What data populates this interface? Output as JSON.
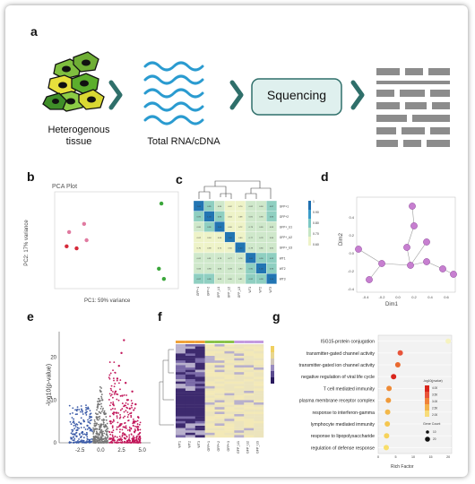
{
  "panels": {
    "a": "a",
    "b": "b",
    "c": "c",
    "d": "d",
    "e": "e",
    "f": "f",
    "g": "g"
  },
  "workflow": {
    "tissue_label_line1": "Heterogenous",
    "tissue_label_line2": "tissue",
    "rna_label": "Total RNA/cDNA",
    "sequencing_label": "Squencing",
    "accent_color": "#2f6f6a",
    "box_fill": "#dff0ee"
  },
  "pca": {
    "title": "PCA Plot",
    "xlabel": "PC1: 59% variance",
    "ylabel": "PC2: 17% variance",
    "points": [
      {
        "x": -0.9,
        "y": 0.3,
        "group": "pink"
      },
      {
        "x": -0.6,
        "y": 0.5,
        "group": "pink"
      },
      {
        "x": -0.55,
        "y": 0.1,
        "group": "pink"
      },
      {
        "x": -0.95,
        "y": -0.05,
        "group": "red"
      },
      {
        "x": -0.75,
        "y": -0.1,
        "group": "red"
      },
      {
        "x": 0.95,
        "y": 1.0,
        "group": "green"
      },
      {
        "x": 0.9,
        "y": -0.6,
        "group": "green"
      },
      {
        "x": 1.0,
        "y": -0.85,
        "group": "green"
      }
    ],
    "colors": {
      "pink": "#e07aa0",
      "red": "#d62a3a",
      "green": "#3aa63a"
    }
  },
  "heatmap_c": {
    "row_labels": [
      "GFP+1",
      "GFP+2",
      "GFP+_U1",
      "GFP+_U2",
      "GFP+_U3",
      "WT1",
      "WT2",
      "WT3"
    ],
    "col_labels": [
      "GFP+1",
      "GFP+2",
      "GFP_U1",
      "GFP_U2",
      "GFP_U3",
      "WT1",
      "WT2",
      "WT3"
    ],
    "legend_ticks": [
      "1",
      "0.90",
      "0.80",
      "0.70",
      "0.60"
    ],
    "cell_values": [
      [
        "1.00",
        "0.85",
        "0.80",
        "0.62",
        "0.70",
        "0.82",
        "0.84",
        "0.87"
      ],
      [
        "0.85",
        "1.00",
        "0.86",
        "0.64",
        "0.68",
        "0.81",
        "0.83",
        "0.85"
      ],
      [
        "0.80",
        "0.86",
        "1.00",
        "0.66",
        "0.72",
        "0.79",
        "0.80",
        "0.83"
      ],
      [
        "0.62",
        "0.64",
        "0.66",
        "1.00",
        "0.60",
        "0.77",
        "0.78",
        "0.80"
      ],
      [
        "0.70",
        "0.68",
        "0.72",
        "0.60",
        "1.00",
        "0.78",
        "0.80",
        "0.81"
      ],
      [
        "0.82",
        "0.81",
        "0.79",
        "0.77",
        "0.78",
        "1.00",
        "0.90",
        "0.92"
      ],
      [
        "0.84",
        "0.83",
        "0.80",
        "0.78",
        "0.80",
        "0.90",
        "1.00",
        "0.93"
      ],
      [
        "0.87",
        "0.85",
        "0.83",
        "0.80",
        "0.81",
        "0.92",
        "0.93",
        "1.00"
      ]
    ]
  },
  "network": {
    "xlabel": "Dim1",
    "ylabel": "Dim2",
    "xticks": [
      "-0.4",
      "-0.2",
      "0.0",
      "0.2",
      "0.4",
      "0.6"
    ],
    "yticks": [
      "0.4",
      "0.2",
      "0.0",
      "-0.2",
      "-0.4"
    ]
  },
  "chart_data": [
    {
      "type": "scatter",
      "title": "",
      "xlabel": "",
      "ylabel": "-log10(p-value)",
      "xticks": [
        "-2.5",
        "0.0",
        "2.5",
        "5.0"
      ],
      "yticks": [
        "0",
        "10",
        "20"
      ],
      "xlim": [
        -5,
        6
      ],
      "ylim": [
        0,
        26
      ],
      "series": [
        {
          "color": "#3b5ba8",
          "points": [
            [
              -3.2,
              2
            ],
            [
              -2.8,
              3
            ],
            [
              -2.4,
              4.5
            ],
            [
              -2,
              5
            ],
            [
              -1.8,
              7
            ],
            [
              -1.5,
              8
            ],
            [
              -1.2,
              6
            ],
            [
              -2.9,
              1.5
            ],
            [
              -3.5,
              1
            ],
            [
              -1.4,
              3.5
            ],
            [
              -2.2,
              2.5
            ],
            [
              -1.6,
              4
            ]
          ]
        },
        {
          "color": "#777777",
          "points": [
            [
              -0.8,
              3
            ],
            [
              -0.5,
              6
            ],
            [
              -0.3,
              9
            ],
            [
              0,
              12
            ],
            [
              0.2,
              10
            ],
            [
              0.4,
              7
            ],
            [
              0.6,
              4
            ],
            [
              -0.2,
              2
            ],
            [
              0.1,
              1
            ],
            [
              0.7,
              2
            ],
            [
              -0.6,
              1.5
            ]
          ]
        },
        {
          "color": "#c2185b",
          "points": [
            [
              1.2,
              5
            ],
            [
              1.5,
              9
            ],
            [
              1.8,
              12
            ],
            [
              2,
              15
            ],
            [
              2.2,
              18
            ],
            [
              2.5,
              21
            ],
            [
              2.8,
              24
            ],
            [
              3,
              14
            ],
            [
              3.2,
              10
            ],
            [
              3.5,
              8
            ],
            [
              4,
              5
            ],
            [
              4.5,
              3
            ],
            [
              2.6,
              11
            ],
            [
              1.9,
              7
            ],
            [
              3.8,
              12
            ],
            [
              2.3,
              4
            ],
            [
              4.2,
              9
            ]
          ]
        }
      ]
    },
    {
      "type": "bar",
      "title": "",
      "xlabel": "Rich Factor",
      "ylabel": "",
      "categories": [
        "ISG15-protein conjugation",
        "transmitter-gated channel activity",
        "transmitter-gated ion channel activity",
        "negative regulation of viral life cycle",
        "T cell mediated immunity",
        "plasma membrane receptor complex",
        "response to interferon-gamma",
        "lymphocyte mediated immunity",
        "response to lipopolysaccharide",
        "regulation of defense response"
      ],
      "values": [
        20.0,
        6.3,
        5.6,
        4.4,
        3.1,
        2.9,
        2.7,
        2.6,
        2.4,
        2.3
      ],
      "xticks": [
        "0",
        "5",
        "10",
        "15",
        "20"
      ],
      "xlim": [
        0,
        21
      ],
      "legend_title": "-log10(pvalue)",
      "legend_ticks": [
        "4.00",
        "3.50",
        "3.00",
        "2.50",
        "2.00"
      ],
      "size_legend_title": "Gene Count",
      "size_legend_ticks": [
        "10",
        "20"
      ]
    }
  ]
}
